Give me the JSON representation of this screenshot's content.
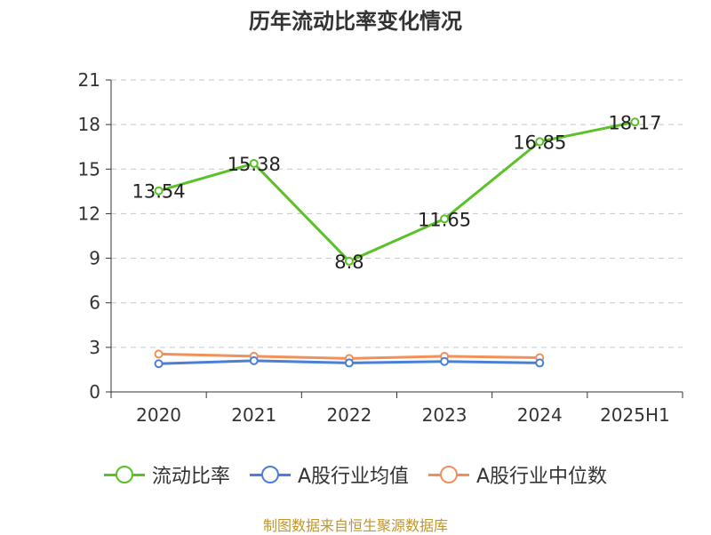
{
  "chart_data": {
    "type": "line",
    "title": "历年流动比率变化情况",
    "categories": [
      "2020",
      "2021",
      "2022",
      "2023",
      "2024",
      "2025H1"
    ],
    "ylim": [
      0,
      21
    ],
    "yticks": [
      "0",
      "3",
      "6",
      "9",
      "12",
      "15",
      "18",
      "21"
    ],
    "grid": true,
    "legend_position": "bottom",
    "series": [
      {
        "name": "流动比率",
        "color": "#5ac127",
        "values": [
          13.54,
          15.38,
          8.8,
          11.65,
          16.85,
          18.17
        ],
        "labels": [
          "13.54",
          "15.38",
          "8.8",
          "11.65",
          "16.85",
          "18.17"
        ]
      },
      {
        "name": "A股行业均值",
        "color": "#4a7fd6",
        "values": [
          1.9,
          2.1,
          1.95,
          2.05,
          1.95,
          null
        ]
      },
      {
        "name": "A股行业中位数",
        "color": "#f0905a",
        "values": [
          2.55,
          2.4,
          2.25,
          2.4,
          2.3,
          null
        ]
      }
    ]
  },
  "source_note": "制图数据来自恒生聚源数据库"
}
